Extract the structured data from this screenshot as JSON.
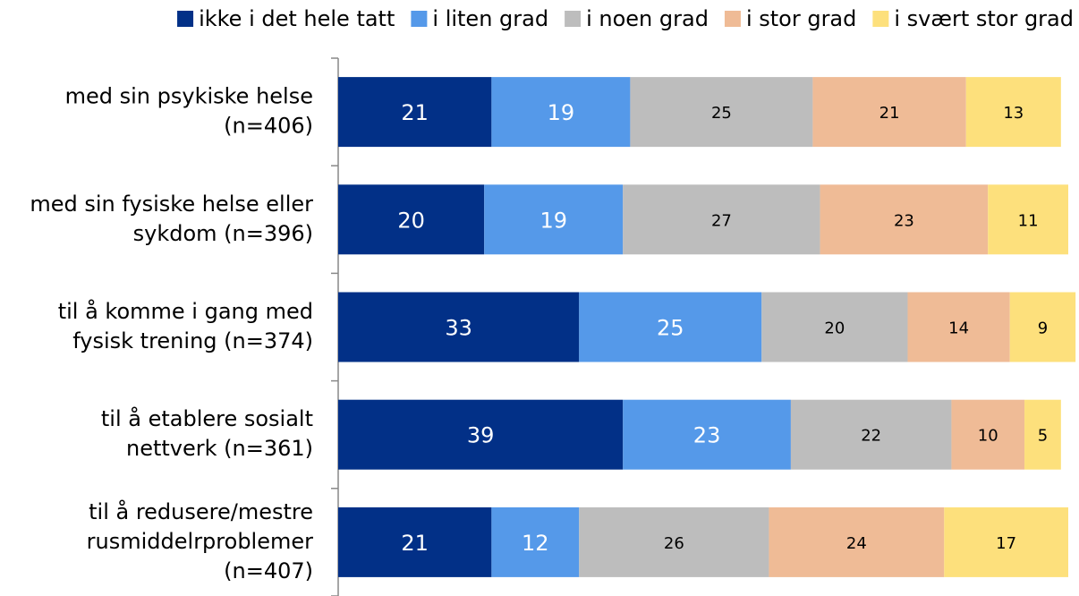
{
  "chart_data": {
    "type": "stacked-barh",
    "categories": [
      "med sin psykiske helse\n(n=406)",
      "med sin fysiske helse eller\nsykdom (n=396)",
      "til å komme i gang med\nfysisk trening (n=374)",
      "til å etablere sosialt\nnettverk (n=361)",
      "til å redusere/mestre\nrusmiddelrproblemer\n(n=407)"
    ],
    "series": [
      {
        "name": "ikke i det hele tatt",
        "color": "#023087",
        "values": [
          21,
          20,
          33,
          39,
          21
        ]
      },
      {
        "name": "i liten grad",
        "color": "#5599e9",
        "values": [
          19,
          19,
          25,
          23,
          12
        ]
      },
      {
        "name": "i noen grad",
        "color": "#bdbdbd",
        "values": [
          25,
          27,
          20,
          22,
          26
        ]
      },
      {
        "name": "i stor grad",
        "color": "#efbb96",
        "values": [
          21,
          23,
          14,
          10,
          24
        ]
      },
      {
        "name": "i svært stor grad",
        "color": "#fde07c",
        "values": [
          13,
          11,
          9,
          5,
          17
        ]
      }
    ],
    "xlim": [
      0,
      100
    ],
    "legend": "top"
  }
}
